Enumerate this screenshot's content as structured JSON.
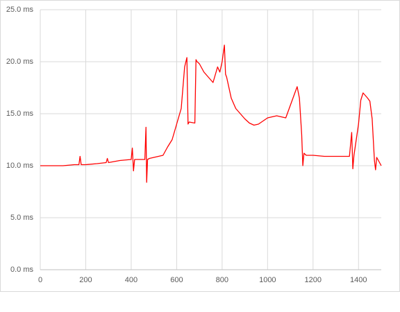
{
  "chart_data": {
    "type": "line",
    "x": [
      0,
      50,
      100,
      150,
      170,
      175,
      180,
      200,
      250,
      290,
      295,
      300,
      350,
      400,
      405,
      410,
      415,
      420,
      450,
      460,
      465,
      468,
      472,
      480,
      500,
      540,
      560,
      580,
      600,
      620,
      635,
      645,
      650,
      655,
      680,
      685,
      690,
      700,
      720,
      740,
      760,
      780,
      790,
      800,
      810,
      815,
      820,
      840,
      860,
      880,
      900,
      920,
      940,
      960,
      980,
      1000,
      1040,
      1080,
      1100,
      1120,
      1130,
      1140,
      1150,
      1155,
      1160,
      1170,
      1200,
      1250,
      1300,
      1360,
      1370,
      1375,
      1380,
      1400,
      1410,
      1420,
      1440,
      1450,
      1460,
      1470,
      1475,
      1480,
      1500
    ],
    "values": [
      10.0,
      10.0,
      10.0,
      10.1,
      10.1,
      10.9,
      10.1,
      10.1,
      10.2,
      10.3,
      10.7,
      10.3,
      10.5,
      10.6,
      11.7,
      9.5,
      10.6,
      10.6,
      10.6,
      10.6,
      13.7,
      8.4,
      10.6,
      10.7,
      10.8,
      11.0,
      11.8,
      12.5,
      14.0,
      15.5,
      19.5,
      20.4,
      14.0,
      14.2,
      14.1,
      20.2,
      20.0,
      19.8,
      19.0,
      18.5,
      18.0,
      19.5,
      19.0,
      20.0,
      21.6,
      18.8,
      18.5,
      16.5,
      15.5,
      15.0,
      14.5,
      14.1,
      13.9,
      14.0,
      14.3,
      14.6,
      14.8,
      14.6,
      15.8,
      17.0,
      17.6,
      16.5,
      13.0,
      10.0,
      11.2,
      11.0,
      11.0,
      10.9,
      10.9,
      10.9,
      13.2,
      9.7,
      11.0,
      14.0,
      16.3,
      17.0,
      16.5,
      16.2,
      14.5,
      10.5,
      9.6,
      10.8,
      10.0
    ],
    "color": "#ff0000",
    "xlim": [
      0,
      1500
    ],
    "xticks": [
      0,
      200,
      400,
      600,
      800,
      1000,
      1200,
      1400
    ],
    "ylim": [
      0,
      25
    ],
    "yticks": [
      {
        "value": 0,
        "label": "0.0 ms"
      },
      {
        "value": 5,
        "label": "5.0 ms"
      },
      {
        "value": 10,
        "label": "10.0 ms"
      },
      {
        "value": 15,
        "label": "15.0 ms"
      },
      {
        "value": 20,
        "label": "20.0 ms"
      },
      {
        "value": 25,
        "label": "25.0 ms"
      }
    ],
    "grid": true
  }
}
